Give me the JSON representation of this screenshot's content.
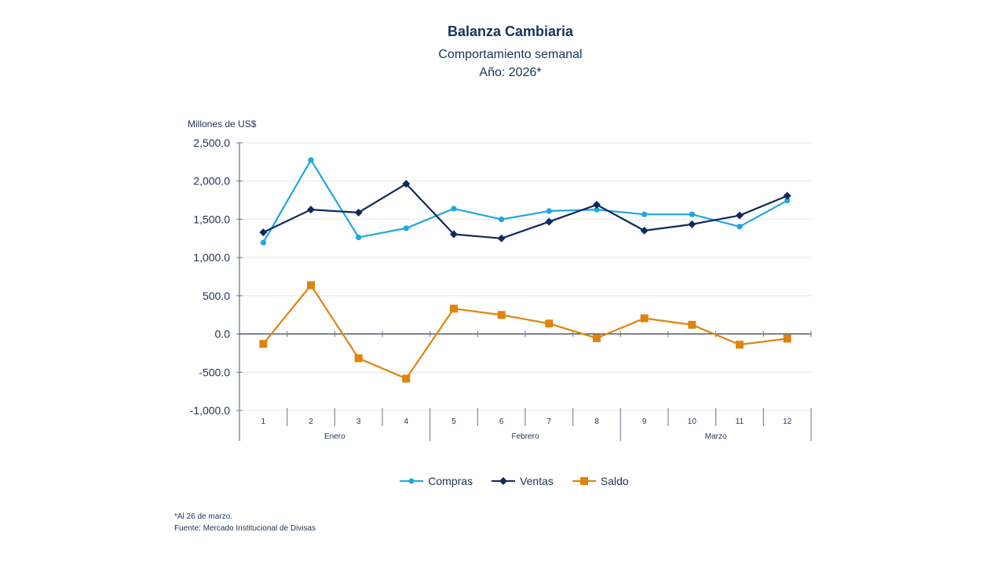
{
  "chart_data": {
    "type": "line",
    "title": "Balanza Cambiaria",
    "subtitle": "Comportamiento semanal",
    "subtitle2": "Año: 2026*",
    "ylabel": "Millones de US$",
    "xlabel": "",
    "ylim": [
      -1000,
      2500
    ],
    "yticks": [
      2500,
      2000,
      1500,
      1000,
      500,
      0,
      -500,
      -1000
    ],
    "ytick_labels": [
      "2,500.0",
      "2,000.0",
      "1,500.0",
      "1,000.0",
      "500.0",
      "0.0",
      "-500.0",
      "-1,000.0"
    ],
    "grid": true,
    "categories": [
      "1",
      "2",
      "3",
      "4",
      "5",
      "6",
      "7",
      "8",
      "9",
      "10",
      "11",
      "12"
    ],
    "groups": [
      {
        "label": "Enero",
        "count": 4
      },
      {
        "label": "Febrero",
        "count": 4
      },
      {
        "label": "Marzo",
        "count": 4
      }
    ],
    "series": [
      {
        "name": "Compras",
        "color": "#1ea7e1",
        "marker": "circle",
        "values": [
          1195,
          2275,
          1264,
          1383,
          1639,
          1499,
          1608,
          1626,
          1564,
          1564,
          1404,
          1745
        ]
      },
      {
        "name": "Ventas",
        "color": "#0f2a5c",
        "marker": "diamond",
        "values": [
          1329,
          1626,
          1588,
          1964,
          1304,
          1250,
          1468,
          1690,
          1352,
          1434,
          1550,
          1807
        ]
      },
      {
        "name": "Saldo",
        "color": "#e0830d",
        "marker": "square",
        "values": [
          -130,
          638,
          -318,
          -584,
          331,
          249,
          136,
          -55,
          205,
          120,
          -140,
          -61
        ]
      }
    ],
    "legend_position": "bottom"
  },
  "footnotes": {
    "note": "*Al 26 de marzo.",
    "source": "Fuente: Mercado Institucional de Divisas"
  }
}
